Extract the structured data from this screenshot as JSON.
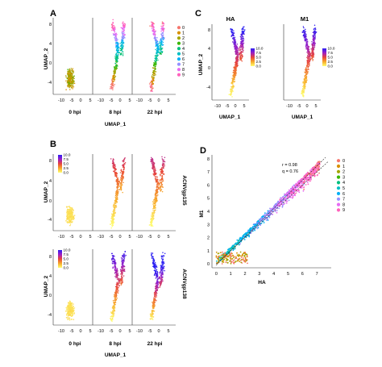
{
  "figure": {
    "panels": {
      "A": {
        "letter": "A",
        "ylabel": "UMAP_2",
        "xlabel": "UMAP_1",
        "facets": [
          "0 hpi",
          "8 hpi",
          "22 hpi"
        ]
      },
      "B": {
        "letter": "B",
        "ylabel_top": "UMAP_2",
        "ylabel_bottom": "UMAP_2",
        "xlabel": "UMAP_1",
        "facets": [
          "0 hpi",
          "8 hpi",
          "22 hpi"
        ],
        "row_labels": [
          "ACNVgp135",
          "ACNVgp138"
        ]
      },
      "C": {
        "letter": "C",
        "titles": [
          "HA",
          "M1"
        ],
        "ylabel": "UMAP_2",
        "xlabels": [
          "UMAP_1",
          "UMAP_1"
        ]
      },
      "D": {
        "letter": "D",
        "ylabel": "M1",
        "xlabel": "HA",
        "stat_r": "r = 0.98",
        "stat_q": "q = 0.76"
      }
    }
  },
  "colors": {
    "clusters": [
      "#f6766d",
      "#d89000",
      "#a3a500",
      "#39b600",
      "#00bf7d",
      "#00bfc4",
      "#00b0f6",
      "#9590ff",
      "#e76bf3",
      "#ff62bc"
    ],
    "expr_scale": [
      "#ffff70",
      "#f7a82a",
      "#e8453c",
      "#9b1ec6",
      "#2b1ff2"
    ]
  },
  "chart_data": [
    {
      "panel": "A",
      "type": "scatter",
      "title": "",
      "xlabel": "UMAP_1",
      "ylabel": "UMAP_2",
      "facets": [
        "0 hpi",
        "8 hpi",
        "22 hpi"
      ],
      "legend": {
        "placement": "right",
        "entries": [
          "0",
          "1",
          "2",
          "3",
          "4",
          "5",
          "6",
          "7",
          "8",
          "9"
        ]
      },
      "x_ticks": [
        -10,
        -5,
        0,
        5
      ],
      "y_ticks": [
        -4,
        0,
        4,
        8
      ],
      "xlim": [
        -12,
        8
      ],
      "ylim": [
        -6,
        9
      ],
      "color_by": "cluster"
    },
    {
      "panel": "B",
      "type": "scatter",
      "title": "",
      "xlabel": "UMAP_1",
      "ylabel": "UMAP_2",
      "facets": [
        "0 hpi",
        "8 hpi",
        "22 hpi"
      ],
      "rows": [
        "ACNVgp135",
        "ACNVgp138"
      ],
      "colorbar": {
        "ticks": [
          "10.0",
          "7.5",
          "5.0",
          "2.5",
          "0.0"
        ],
        "range": [
          0,
          10
        ]
      },
      "x_ticks": [
        -10,
        -5,
        0,
        5
      ],
      "y_ticks": [
        -4,
        0,
        4,
        8
      ],
      "xlim": [
        -12,
        8
      ],
      "ylim": [
        -6,
        9
      ],
      "color_by": "expression"
    },
    {
      "panel": "C",
      "type": "scatter",
      "titles": [
        "HA",
        "M1"
      ],
      "xlabel": "UMAP_1",
      "ylabel": "UMAP_2",
      "colorbar": {
        "ticks": [
          "10.0",
          "7.5",
          "5.0",
          "2.5",
          "0.0"
        ],
        "range": [
          0,
          10
        ]
      },
      "x_ticks": [
        -10,
        -5,
        0,
        5
      ],
      "y_ticks": [
        -4,
        0,
        4,
        8
      ],
      "xlim": [
        -12,
        8
      ],
      "ylim": [
        -6,
        9
      ],
      "color_by": "expression"
    },
    {
      "panel": "D",
      "type": "scatter",
      "title": "",
      "xlabel": "HA",
      "ylabel": "M1",
      "x_ticks": [
        0,
        1,
        2,
        3,
        4,
        5,
        6,
        7
      ],
      "y_ticks": [
        0,
        1,
        2,
        3,
        4,
        5,
        6,
        7,
        8
      ],
      "xlim": [
        -0.3,
        8
      ],
      "ylim": [
        -0.3,
        8.3
      ],
      "annotations": [
        "r = 0.98",
        "q = 0.76"
      ],
      "reference_lines": [
        "diagonal y = x (dashed)",
        "fitted line (dashed)"
      ],
      "legend": {
        "placement": "right",
        "entries": [
          "0",
          "1",
          "2",
          "3",
          "4",
          "5",
          "6",
          "7",
          "8",
          "9"
        ]
      }
    }
  ]
}
